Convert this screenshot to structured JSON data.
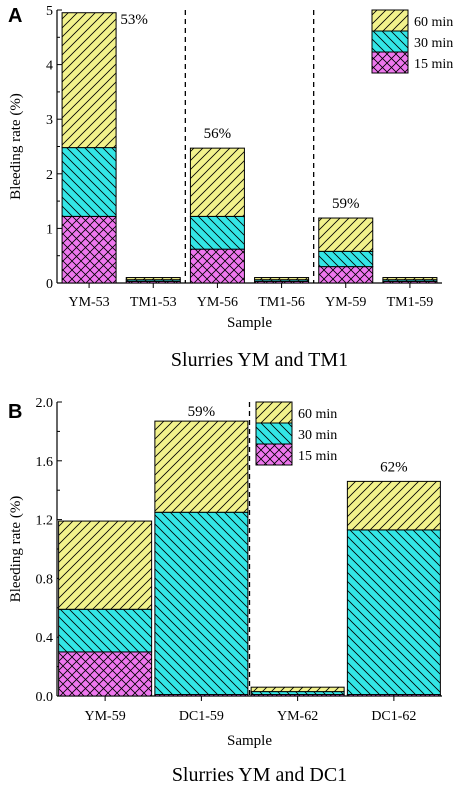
{
  "colors": {
    "60 min": "#f2f28c",
    "30 min": "#33e6e6",
    "15 min": "#ee77ee",
    "stroke": "#000000"
  },
  "chart_data": [
    {
      "panel": "A",
      "type": "bar",
      "stacked": true,
      "caption": "Slurries YM and TM1",
      "xlabel": "Sample",
      "ylabel": "Bleeding rate (%)",
      "ylim": [
        0,
        5
      ],
      "yticks": [
        "0",
        "1",
        "2",
        "3",
        "4",
        "5"
      ],
      "categories": [
        "YM-53",
        "TM1-53",
        "YM-56",
        "TM1-56",
        "YM-59",
        "TM1-59"
      ],
      "series": [
        {
          "name": "15 min",
          "values": [
            1.22,
            0.03,
            0.62,
            0.03,
            0.3,
            0.03
          ]
        },
        {
          "name": "30 min",
          "values": [
            1.26,
            0.03,
            0.6,
            0.03,
            0.28,
            0.03
          ]
        },
        {
          "name": "60 min",
          "values": [
            2.47,
            0.04,
            1.25,
            0.04,
            0.61,
            0.04
          ]
        }
      ],
      "annotations": [
        {
          "text": "53%",
          "category": "YM-53"
        },
        {
          "text": "56%",
          "category": "YM-56"
        },
        {
          "text": "59%",
          "category": "YM-59"
        }
      ],
      "dividers_after": [
        "TM1-53",
        "TM1-56"
      ],
      "legend": {
        "position": "top-right",
        "entries": [
          "60 min",
          "30 min",
          "15 min"
        ]
      }
    },
    {
      "panel": "B",
      "type": "bar",
      "stacked": true,
      "caption": "Slurries YM and DC1",
      "xlabel": "Sample",
      "ylabel": "Bleeding rate (%)",
      "ylim": [
        0,
        2.0
      ],
      "yticks": [
        "0.0",
        "0.4",
        "0.8",
        "1.2",
        "1.6",
        "2.0"
      ],
      "categories": [
        "YM-59",
        "DC1-59",
        "YM-62",
        "DC1-62"
      ],
      "series": [
        {
          "name": "15 min",
          "values": [
            0.3,
            0.01,
            0.01,
            0.01
          ]
        },
        {
          "name": "30 min",
          "values": [
            0.29,
            1.24,
            0.02,
            1.12
          ]
        },
        {
          "name": "60 min",
          "values": [
            0.6,
            0.62,
            0.03,
            0.33
          ]
        }
      ],
      "annotations": [
        {
          "text": "59%",
          "category": "DC1-59"
        },
        {
          "text": "62%",
          "category": "DC1-62"
        }
      ],
      "dividers_after": [
        "DC1-59"
      ],
      "legend": {
        "position": "top-center",
        "entries": [
          "60 min",
          "30 min",
          "15 min"
        ]
      }
    }
  ]
}
